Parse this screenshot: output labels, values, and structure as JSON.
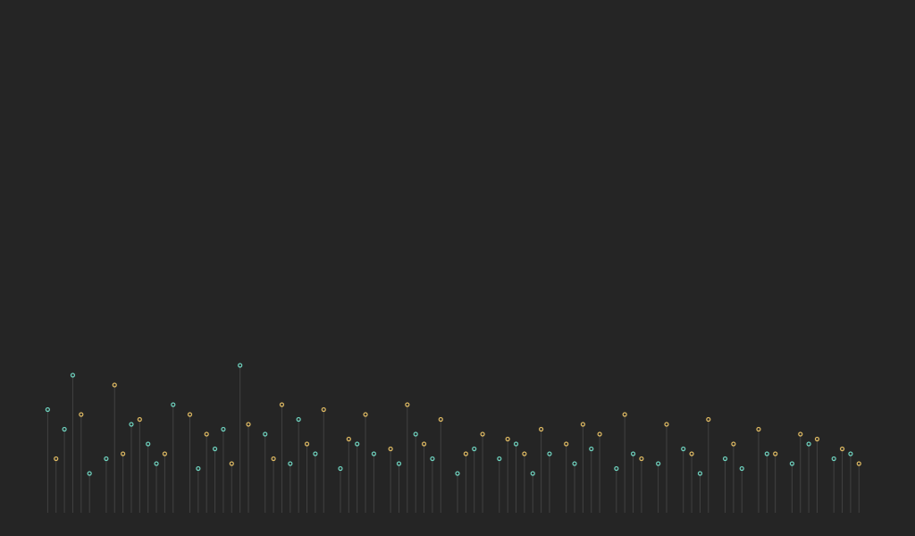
{
  "chart_data": {
    "type": "scatter",
    "title": "",
    "xlabel": "",
    "ylabel": "",
    "xlim": [
      0,
      1
    ],
    "ylim": [
      0,
      1
    ],
    "grid": false,
    "legend": "none",
    "colors": {
      "background": "#252525",
      "stem": "#8a8a8a",
      "series_a": "#6fd4c0",
      "series_b": "#e0bb63"
    },
    "series": [
      {
        "values": [
          [
            0.01,
            0.21
          ],
          [
            0.03,
            0.17
          ],
          [
            0.04,
            0.28
          ],
          [
            0.06,
            0.08
          ],
          [
            0.08,
            0.11
          ],
          [
            0.11,
            0.18
          ],
          [
            0.13,
            0.14
          ],
          [
            0.14,
            0.1
          ],
          [
            0.16,
            0.22
          ],
          [
            0.19,
            0.09
          ],
          [
            0.21,
            0.13
          ],
          [
            0.22,
            0.17
          ],
          [
            0.24,
            0.3
          ],
          [
            0.27,
            0.16
          ],
          [
            0.3,
            0.1
          ],
          [
            0.31,
            0.19
          ],
          [
            0.33,
            0.12
          ],
          [
            0.36,
            0.09
          ],
          [
            0.38,
            0.14
          ],
          [
            0.4,
            0.12
          ],
          [
            0.43,
            0.1
          ],
          [
            0.45,
            0.16
          ],
          [
            0.47,
            0.11
          ],
          [
            0.5,
            0.08
          ],
          [
            0.52,
            0.13
          ],
          [
            0.55,
            0.11
          ],
          [
            0.57,
            0.14
          ],
          [
            0.59,
            0.08
          ],
          [
            0.61,
            0.12
          ],
          [
            0.64,
            0.1
          ],
          [
            0.66,
            0.13
          ],
          [
            0.69,
            0.09
          ],
          [
            0.71,
            0.12
          ],
          [
            0.74,
            0.1
          ],
          [
            0.77,
            0.13
          ],
          [
            0.79,
            0.08
          ],
          [
            0.82,
            0.11
          ],
          [
            0.84,
            0.09
          ],
          [
            0.87,
            0.12
          ],
          [
            0.9,
            0.1
          ],
          [
            0.92,
            0.14
          ],
          [
            0.95,
            0.11
          ],
          [
            0.97,
            0.12
          ]
        ]
      },
      {
        "values": [
          [
            0.02,
            0.11
          ],
          [
            0.05,
            0.2
          ],
          [
            0.09,
            0.26
          ],
          [
            0.1,
            0.12
          ],
          [
            0.12,
            0.19
          ],
          [
            0.15,
            0.12
          ],
          [
            0.18,
            0.2
          ],
          [
            0.2,
            0.16
          ],
          [
            0.23,
            0.1
          ],
          [
            0.25,
            0.18
          ],
          [
            0.28,
            0.11
          ],
          [
            0.29,
            0.22
          ],
          [
            0.32,
            0.14
          ],
          [
            0.34,
            0.21
          ],
          [
            0.37,
            0.15
          ],
          [
            0.39,
            0.2
          ],
          [
            0.42,
            0.13
          ],
          [
            0.44,
            0.22
          ],
          [
            0.46,
            0.14
          ],
          [
            0.48,
            0.19
          ],
          [
            0.51,
            0.12
          ],
          [
            0.53,
            0.16
          ],
          [
            0.56,
            0.15
          ],
          [
            0.58,
            0.12
          ],
          [
            0.6,
            0.17
          ],
          [
            0.63,
            0.14
          ],
          [
            0.65,
            0.18
          ],
          [
            0.67,
            0.16
          ],
          [
            0.7,
            0.2
          ],
          [
            0.72,
            0.11
          ],
          [
            0.75,
            0.18
          ],
          [
            0.78,
            0.12
          ],
          [
            0.8,
            0.19
          ],
          [
            0.83,
            0.14
          ],
          [
            0.86,
            0.17
          ],
          [
            0.88,
            0.12
          ],
          [
            0.91,
            0.16
          ],
          [
            0.93,
            0.15
          ],
          [
            0.96,
            0.13
          ],
          [
            0.98,
            0.1
          ]
        ]
      }
    ]
  }
}
